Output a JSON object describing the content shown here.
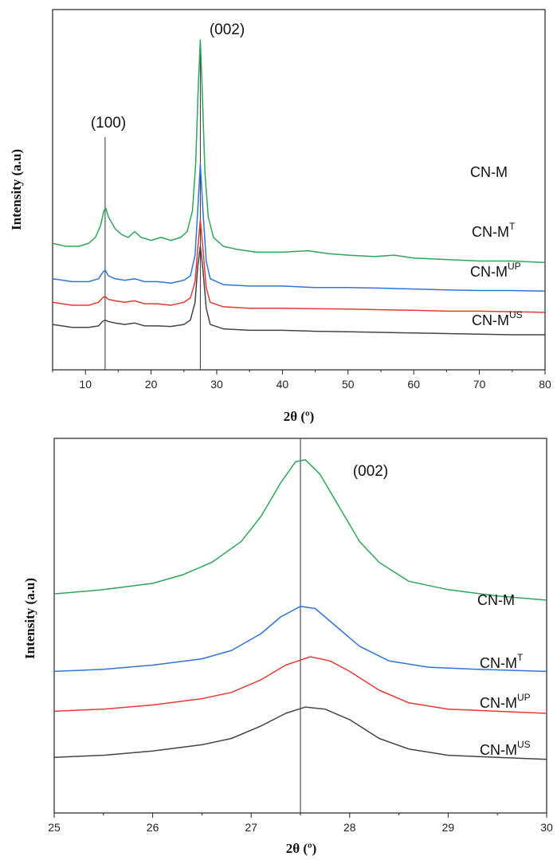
{
  "colors": {
    "CN-M": "#2ea55a",
    "CN-M^T": "#2f74d6",
    "CN-M^UP": "#e53935",
    "CN-M^US": "#444444",
    "axis": "#222222",
    "reference": "#333333"
  },
  "chart_data": [
    {
      "type": "line",
      "title": "",
      "xlabel": "2θ (º)",
      "ylabel": "Intensity (a.u)",
      "xlim": [
        5,
        80
      ],
      "x_ticks": [
        10,
        20,
        30,
        40,
        50,
        60,
        70,
        80
      ],
      "y_ticks": [],
      "grid": false,
      "reference_lines_x": [
        13,
        27.5
      ],
      "annotations": [
        {
          "text": "(100)",
          "x": 13
        },
        {
          "text": "(002)",
          "x": 27.5
        }
      ],
      "series": [
        {
          "name": "CN-M",
          "label_base": "CN-M",
          "label_sup": "",
          "color_key": "CN-M",
          "points": [
            [
              5,
              0.31
            ],
            [
              7,
              0.3
            ],
            [
              9,
              0.3
            ],
            [
              10.5,
              0.31
            ],
            [
              11.5,
              0.33
            ],
            [
              12.3,
              0.37
            ],
            [
              12.8,
              0.42
            ],
            [
              13.1,
              0.43
            ],
            [
              13.5,
              0.4
            ],
            [
              14.5,
              0.36
            ],
            [
              15.5,
              0.34
            ],
            [
              16.5,
              0.33
            ],
            [
              17.5,
              0.35
            ],
            [
              18.5,
              0.33
            ],
            [
              20,
              0.32
            ],
            [
              21.5,
              0.33
            ],
            [
              23,
              0.32
            ],
            [
              24.5,
              0.33
            ],
            [
              25.5,
              0.35
            ],
            [
              26.3,
              0.42
            ],
            [
              26.8,
              0.58
            ],
            [
              27.2,
              0.85
            ],
            [
              27.5,
              1.0
            ],
            [
              27.8,
              0.82
            ],
            [
              28.2,
              0.55
            ],
            [
              28.7,
              0.4
            ],
            [
              29.5,
              0.33
            ],
            [
              31,
              0.3
            ],
            [
              33,
              0.29
            ],
            [
              36,
              0.28
            ],
            [
              40,
              0.28
            ],
            [
              44,
              0.285
            ],
            [
              47,
              0.275
            ],
            [
              50,
              0.27
            ],
            [
              54,
              0.265
            ],
            [
              57,
              0.27
            ],
            [
              60,
              0.26
            ],
            [
              65,
              0.255
            ],
            [
              70,
              0.25
            ],
            [
              75,
              0.25
            ],
            [
              80,
              0.245
            ]
          ]
        },
        {
          "name": "CN-M^T",
          "label_base": "CN-M",
          "label_sup": "T",
          "color_key": "CN-M^T",
          "points": [
            [
              5,
              0.19
            ],
            [
              8,
              0.18
            ],
            [
              10.5,
              0.18
            ],
            [
              12,
              0.19
            ],
            [
              12.6,
              0.21
            ],
            [
              13,
              0.22
            ],
            [
              13.5,
              0.2
            ],
            [
              14.5,
              0.19
            ],
            [
              16,
              0.185
            ],
            [
              17.5,
              0.19
            ],
            [
              19,
              0.18
            ],
            [
              21,
              0.18
            ],
            [
              23,
              0.175
            ],
            [
              25,
              0.185
            ],
            [
              26,
              0.2
            ],
            [
              26.7,
              0.27
            ],
            [
              27.1,
              0.42
            ],
            [
              27.5,
              0.58
            ],
            [
              27.9,
              0.42
            ],
            [
              28.4,
              0.25
            ],
            [
              29,
              0.19
            ],
            [
              31,
              0.17
            ],
            [
              35,
              0.165
            ],
            [
              40,
              0.165
            ],
            [
              45,
              0.16
            ],
            [
              50,
              0.16
            ],
            [
              55,
              0.158
            ],
            [
              60,
              0.155
            ],
            [
              65,
              0.152
            ],
            [
              70,
              0.15
            ],
            [
              75,
              0.15
            ],
            [
              80,
              0.148
            ]
          ]
        },
        {
          "name": "CN-M^UP",
          "label_base": "CN-M",
          "label_sup": "UP",
          "color_key": "CN-M^UP",
          "points": [
            [
              5,
              0.11
            ],
            [
              8,
              0.1
            ],
            [
              10.5,
              0.1
            ],
            [
              12,
              0.11
            ],
            [
              12.6,
              0.125
            ],
            [
              13,
              0.13
            ],
            [
              13.5,
              0.12
            ],
            [
              14.5,
              0.115
            ],
            [
              16,
              0.11
            ],
            [
              17.5,
              0.115
            ],
            [
              19,
              0.105
            ],
            [
              21,
              0.105
            ],
            [
              23,
              0.1
            ],
            [
              25,
              0.11
            ],
            [
              26,
              0.125
            ],
            [
              26.7,
              0.18
            ],
            [
              27.1,
              0.29
            ],
            [
              27.5,
              0.39
            ],
            [
              27.9,
              0.29
            ],
            [
              28.4,
              0.16
            ],
            [
              29,
              0.11
            ],
            [
              31,
              0.095
            ],
            [
              35,
              0.09
            ],
            [
              40,
              0.09
            ],
            [
              45,
              0.088
            ],
            [
              50,
              0.087
            ],
            [
              55,
              0.085
            ],
            [
              60,
              0.083
            ],
            [
              65,
              0.08
            ],
            [
              70,
              0.08
            ],
            [
              75,
              0.078
            ],
            [
              80,
              0.076
            ]
          ]
        },
        {
          "name": "CN-M^US",
          "label_base": "CN-M",
          "label_sup": "US",
          "color_key": "CN-M^US",
          "points": [
            [
              5,
              0.035
            ],
            [
              8,
              0.025
            ],
            [
              10.5,
              0.025
            ],
            [
              12,
              0.03
            ],
            [
              12.6,
              0.045
            ],
            [
              13,
              0.05
            ],
            [
              13.5,
              0.045
            ],
            [
              14.5,
              0.04
            ],
            [
              16,
              0.035
            ],
            [
              17.5,
              0.04
            ],
            [
              19,
              0.03
            ],
            [
              21,
              0.03
            ],
            [
              23,
              0.028
            ],
            [
              25,
              0.035
            ],
            [
              26,
              0.05
            ],
            [
              26.7,
              0.11
            ],
            [
              27.1,
              0.23
            ],
            [
              27.5,
              0.3
            ],
            [
              27.9,
              0.22
            ],
            [
              28.4,
              0.09
            ],
            [
              29,
              0.035
            ],
            [
              31,
              0.02
            ],
            [
              35,
              0.015
            ],
            [
              40,
              0.015
            ],
            [
              45,
              0.012
            ],
            [
              50,
              0.01
            ],
            [
              55,
              0.008
            ],
            [
              60,
              0.006
            ],
            [
              65,
              0.004
            ],
            [
              70,
              0.002
            ],
            [
              75,
              0.0
            ],
            [
              80,
              0.0
            ]
          ]
        }
      ]
    },
    {
      "type": "line",
      "title": "",
      "xlabel": "2θ (º)",
      "ylabel": "Intensity (a.u)",
      "xlim": [
        25,
        30
      ],
      "x_ticks": [
        25,
        26,
        27,
        28,
        29,
        30
      ],
      "y_ticks": [],
      "grid": false,
      "reference_lines_x": [
        27.5
      ],
      "annotations": [
        {
          "text": "(002)",
          "x": 27.9
        }
      ],
      "series": [
        {
          "name": "CN-M",
          "label_base": "CN-M",
          "label_sup": "",
          "color_key": "CN-M",
          "points": [
            [
              25,
              0.555
            ],
            [
              25.5,
              0.565
            ],
            [
              26,
              0.58
            ],
            [
              26.3,
              0.6
            ],
            [
              26.6,
              0.63
            ],
            [
              26.9,
              0.68
            ],
            [
              27.1,
              0.74
            ],
            [
              27.3,
              0.82
            ],
            [
              27.45,
              0.87
            ],
            [
              27.55,
              0.875
            ],
            [
              27.7,
              0.84
            ],
            [
              27.9,
              0.76
            ],
            [
              28.1,
              0.68
            ],
            [
              28.3,
              0.63
            ],
            [
              28.6,
              0.585
            ],
            [
              29,
              0.565
            ],
            [
              29.5,
              0.55
            ],
            [
              30,
              0.54
            ]
          ]
        },
        {
          "name": "CN-M^T",
          "label_base": "CN-M",
          "label_sup": "T",
          "color_key": "CN-M^T",
          "points": [
            [
              25,
              0.37
            ],
            [
              25.5,
              0.375
            ],
            [
              26,
              0.385
            ],
            [
              26.5,
              0.4
            ],
            [
              26.8,
              0.42
            ],
            [
              27.1,
              0.46
            ],
            [
              27.3,
              0.5
            ],
            [
              27.5,
              0.525
            ],
            [
              27.65,
              0.52
            ],
            [
              27.85,
              0.48
            ],
            [
              28.1,
              0.43
            ],
            [
              28.4,
              0.395
            ],
            [
              28.8,
              0.38
            ],
            [
              29.3,
              0.375
            ],
            [
              30,
              0.37
            ]
          ]
        },
        {
          "name": "CN-M^UP",
          "label_base": "CN-M",
          "label_sup": "UP",
          "color_key": "CN-M^UP",
          "points": [
            [
              25,
              0.275
            ],
            [
              25.5,
              0.28
            ],
            [
              26,
              0.29
            ],
            [
              26.5,
              0.305
            ],
            [
              26.8,
              0.32
            ],
            [
              27.1,
              0.35
            ],
            [
              27.35,
              0.385
            ],
            [
              27.6,
              0.405
            ],
            [
              27.8,
              0.395
            ],
            [
              28,
              0.37
            ],
            [
              28.3,
              0.325
            ],
            [
              28.6,
              0.295
            ],
            [
              29,
              0.28
            ],
            [
              29.5,
              0.275
            ],
            [
              30,
              0.27
            ]
          ]
        },
        {
          "name": "CN-M^US",
          "label_base": "CN-M",
          "label_sup": "US",
          "color_key": "CN-M^US",
          "points": [
            [
              25,
              0.165
            ],
            [
              25.5,
              0.17
            ],
            [
              26,
              0.18
            ],
            [
              26.5,
              0.195
            ],
            [
              26.8,
              0.21
            ],
            [
              27.1,
              0.24
            ],
            [
              27.35,
              0.27
            ],
            [
              27.55,
              0.285
            ],
            [
              27.75,
              0.28
            ],
            [
              28,
              0.255
            ],
            [
              28.3,
              0.21
            ],
            [
              28.6,
              0.185
            ],
            [
              29,
              0.17
            ],
            [
              29.5,
              0.165
            ],
            [
              30,
              0.16
            ]
          ]
        }
      ]
    }
  ]
}
